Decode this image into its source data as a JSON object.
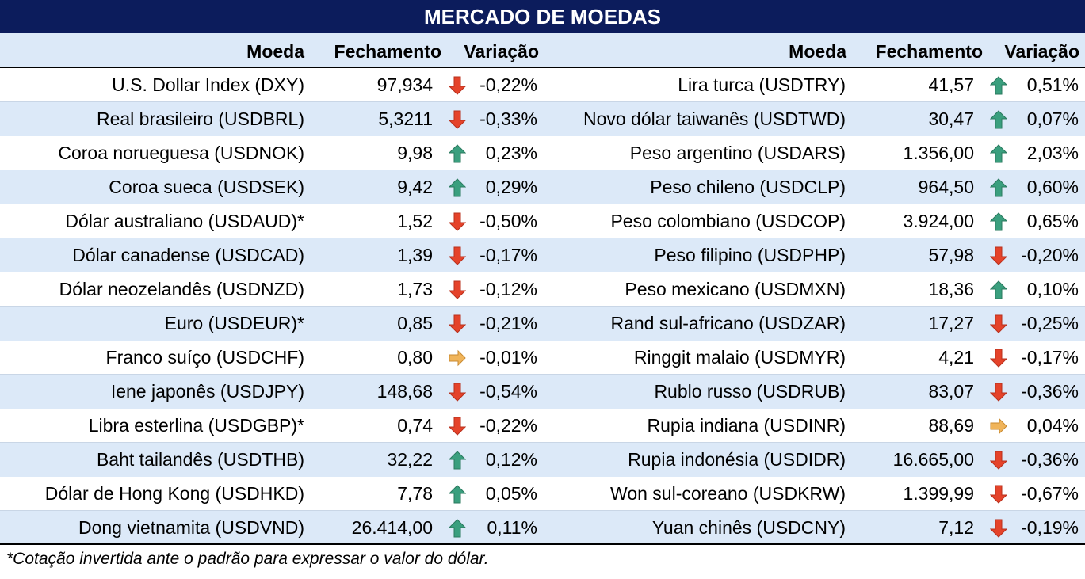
{
  "title": "MERCADO DE MOEDAS",
  "headers": {
    "currency": "Moeda",
    "close": "Fechamento",
    "change": "Variação"
  },
  "colors": {
    "title_bg": "#0c1c5c",
    "stripe": "#dce9f8",
    "up": "#3a9f7e",
    "down": "#e5432a",
    "flat": "#f0b45a"
  },
  "left": [
    {
      "name": "U.S. Dollar Index (DXY)",
      "close": "97,934",
      "dir": "down",
      "change": "-0,22%"
    },
    {
      "name": "Real brasileiro (USDBRL)",
      "close": "5,3211",
      "dir": "down",
      "change": "-0,33%"
    },
    {
      "name": "Coroa norueguesa (USDNOK)",
      "close": "9,98",
      "dir": "up",
      "change": "0,23%"
    },
    {
      "name": "Coroa sueca (USDSEK)",
      "close": "9,42",
      "dir": "up",
      "change": "0,29%"
    },
    {
      "name": "Dólar australiano (USDAUD)*",
      "close": "1,52",
      "dir": "down",
      "change": "-0,50%"
    },
    {
      "name": "Dólar canadense (USDCAD)",
      "close": "1,39",
      "dir": "down",
      "change": "-0,17%"
    },
    {
      "name": "Dólar neozelandês (USDNZD)",
      "close": "1,73",
      "dir": "down",
      "change": "-0,12%"
    },
    {
      "name": "Euro (USDEUR)*",
      "close": "0,85",
      "dir": "down",
      "change": "-0,21%"
    },
    {
      "name": "Franco suíço (USDCHF)",
      "close": "0,80",
      "dir": "flat",
      "change": "-0,01%"
    },
    {
      "name": "Iene japonês (USDJPY)",
      "close": "148,68",
      "dir": "down",
      "change": "-0,54%"
    },
    {
      "name": "Libra esterlina (USDGBP)*",
      "close": "0,74",
      "dir": "down",
      "change": "-0,22%"
    },
    {
      "name": "Baht tailandês (USDTHB)",
      "close": "32,22",
      "dir": "up",
      "change": "0,12%"
    },
    {
      "name": "Dólar de Hong Kong (USDHKD)",
      "close": "7,78",
      "dir": "up",
      "change": "0,05%"
    },
    {
      "name": "Dong vietnamita (USDVND)",
      "close": "26.414,00",
      "dir": "up",
      "change": "0,11%"
    }
  ],
  "right": [
    {
      "name": "Lira turca (USDTRY)",
      "close": "41,57",
      "dir": "up",
      "change": "0,51%"
    },
    {
      "name": "Novo dólar taiwanês (USDTWD)",
      "close": "30,47",
      "dir": "up",
      "change": "0,07%"
    },
    {
      "name": "Peso argentino (USDARS)",
      "close": "1.356,00",
      "dir": "up",
      "change": "2,03%"
    },
    {
      "name": "Peso chileno (USDCLP)",
      "close": "964,50",
      "dir": "up",
      "change": "0,60%"
    },
    {
      "name": "Peso colombiano (USDCOP)",
      "close": "3.924,00",
      "dir": "up",
      "change": "0,65%"
    },
    {
      "name": "Peso filipino (USDPHP)",
      "close": "57,98",
      "dir": "down",
      "change": "-0,20%"
    },
    {
      "name": "Peso mexicano (USDMXN)",
      "close": "18,36",
      "dir": "up",
      "change": "0,10%"
    },
    {
      "name": "Rand sul-africano (USDZAR)",
      "close": "17,27",
      "dir": "down",
      "change": "-0,25%"
    },
    {
      "name": "Ringgit malaio (USDMYR)",
      "close": "4,21",
      "dir": "down",
      "change": "-0,17%"
    },
    {
      "name": "Rublo russo (USDRUB)",
      "close": "83,07",
      "dir": "down",
      "change": "-0,36%"
    },
    {
      "name": "Rupia indiana (USDINR)",
      "close": "88,69",
      "dir": "flat",
      "change": "0,04%"
    },
    {
      "name": "Rupia indonésia (USDIDR)",
      "close": "16.665,00",
      "dir": "down",
      "change": "-0,36%"
    },
    {
      "name": "Won sul-coreano (USDKRW)",
      "close": "1.399,99",
      "dir": "down",
      "change": "-0,67%"
    },
    {
      "name": "Yuan chinês (USDCNY)",
      "close": "7,12",
      "dir": "down",
      "change": "-0,19%"
    }
  ],
  "footnote": "*Cotação invertida ante o padrão para expressar o valor do dólar."
}
